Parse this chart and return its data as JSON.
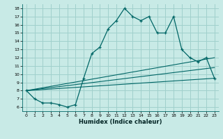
{
  "xlabel": "Humidex (Indice chaleur)",
  "bg_color": "#c8eae6",
  "grid_color": "#a0d0cc",
  "line_color": "#006666",
  "xlim": [
    -0.5,
    23.5
  ],
  "ylim": [
    5.5,
    18.5
  ],
  "xticks": [
    0,
    1,
    2,
    3,
    4,
    5,
    6,
    7,
    8,
    9,
    10,
    11,
    12,
    13,
    14,
    15,
    16,
    17,
    18,
    19,
    20,
    21,
    22,
    23
  ],
  "yticks": [
    6,
    7,
    8,
    9,
    10,
    11,
    12,
    13,
    14,
    15,
    16,
    17,
    18
  ],
  "main_x": [
    0,
    1,
    2,
    3,
    4,
    5,
    6,
    7,
    8,
    9,
    10,
    11,
    12,
    13,
    14,
    15,
    16,
    17,
    18,
    19,
    20,
    21,
    22,
    23
  ],
  "main_y": [
    8.0,
    7.0,
    6.5,
    6.5,
    6.3,
    6.0,
    6.3,
    9.5,
    12.5,
    13.3,
    15.5,
    16.5,
    18.0,
    17.0,
    16.5,
    17.0,
    15.0,
    15.0,
    17.0,
    13.0,
    12.0,
    11.5,
    12.0,
    9.5
  ],
  "line2_x": [
    0,
    23
  ],
  "line2_y": [
    8.0,
    9.5
  ],
  "line3_x": [
    0,
    23
  ],
  "line3_y": [
    8.0,
    10.8
  ],
  "line4_x": [
    0,
    23
  ],
  "line4_y": [
    8.0,
    12.0
  ]
}
